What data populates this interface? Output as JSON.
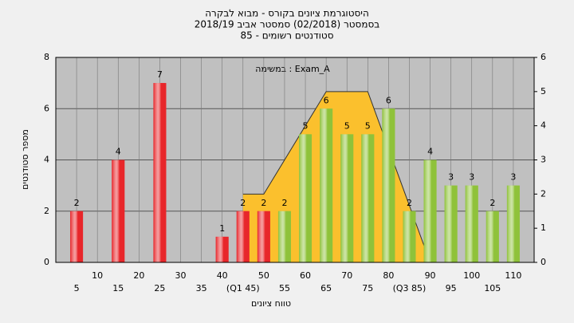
{
  "chart_data": {
    "type": "bar",
    "title": [
      "היסטוגרמת ציונים בקורס - מבוא לבקרה",
      "בסמסטר  (02/2018)  סמסטר אביב 2018/19",
      "סטודנטים רשומים - 85"
    ],
    "annotation": "במשימה : Exam_A",
    "xlabel": "טווח ציונים",
    "ylabel": "מספר סטודנטים",
    "x": [
      5,
      10,
      15,
      20,
      25,
      30,
      35,
      40,
      45,
      50,
      55,
      60,
      65,
      70,
      75,
      80,
      85,
      90,
      95,
      100,
      105,
      110
    ],
    "values": [
      2,
      0,
      4,
      0,
      7,
      0,
      0,
      1,
      2,
      2,
      2,
      5,
      6,
      5,
      5,
      6,
      2,
      4,
      3,
      3,
      2,
      3
    ],
    "colors": [
      "#e8262a",
      "#e8262a",
      "#e8262a",
      "#e8262a",
      "#e8262a",
      "#e8262a",
      "#e8262a",
      "#e8262a",
      "#e8262a",
      "#e8262a",
      "#8fc23a",
      "#8fc23a",
      "#8fc23a",
      "#8fc23a",
      "#8fc23a",
      "#8fc23a",
      "#8fc23a",
      "#8fc23a",
      "#8fc23a",
      "#8fc23a",
      "#8fc23a",
      "#8fc23a"
    ],
    "area": {
      "x": [
        45,
        50,
        65,
        75,
        90
      ],
      "values": [
        2,
        2,
        5,
        5,
        0
      ],
      "color": "#fbc02d",
      "axis": "y2"
    },
    "xlim": [
      0,
      115
    ],
    "xticks": [
      5,
      10,
      15,
      20,
      25,
      30,
      35,
      40,
      {
        "value": 45,
        "label": "(Q1 45)"
      },
      50,
      55,
      60,
      65,
      70,
      75,
      80,
      {
        "value": 85,
        "label": "(Q3 85)"
      },
      90,
      95,
      100,
      105,
      110
    ],
    "ylim": [
      0,
      8
    ],
    "yticks": [
      0,
      2,
      4,
      6,
      8
    ],
    "y2lim": [
      0,
      6
    ],
    "y2ticks": [
      0,
      1,
      2,
      3,
      4,
      5,
      6
    ],
    "grid": true
  }
}
